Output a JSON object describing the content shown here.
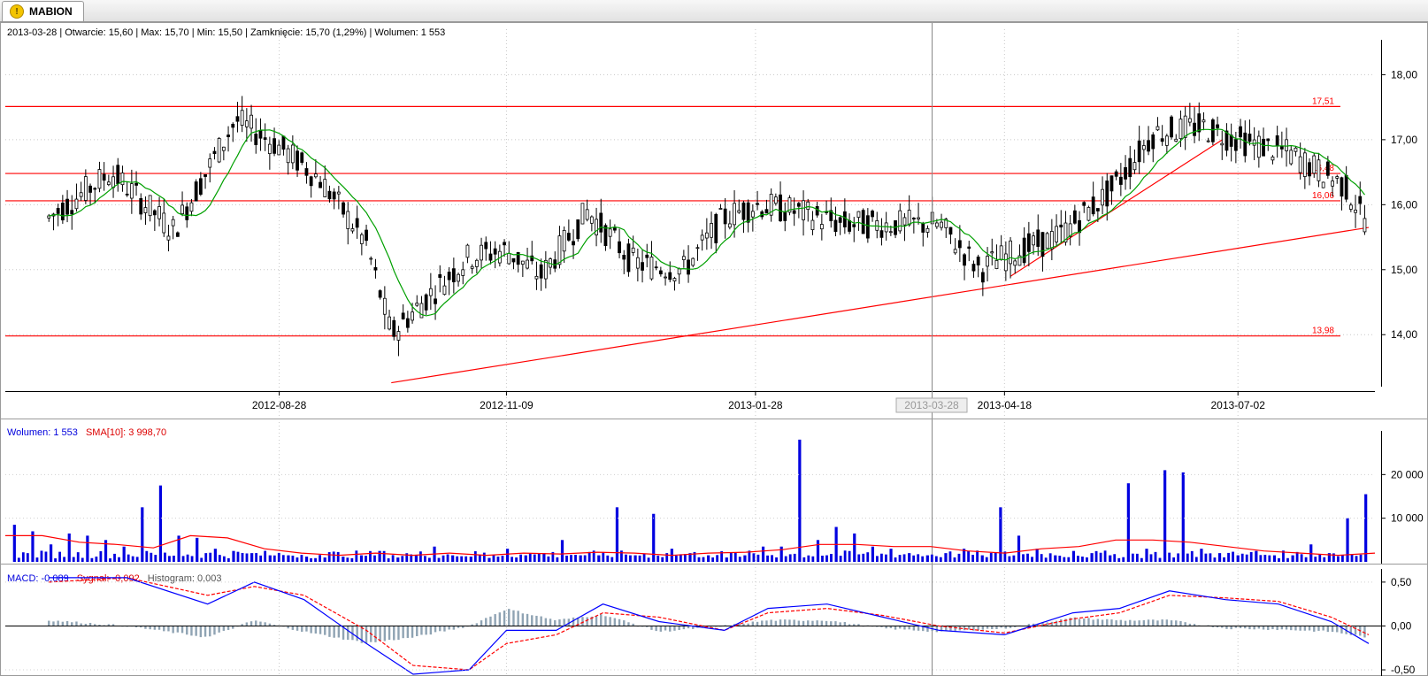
{
  "window": {
    "tab_label": "MABION",
    "tab_icon": "warning-icon"
  },
  "price_panel": {
    "info": "2013-03-28 | Otwarcie: 15,60 | Max: 15,70 | Min: 15,50 | Zamknięcie: 15,70 (1,29%) | Wolumen: 1 553",
    "crosshair_date": "2013-03-28",
    "xlabels": [
      "2012-08-28",
      "2012-11-09",
      "2013-01-28",
      "2013-04-18",
      "2013-07-02"
    ],
    "ylabels": [
      "18,00",
      "17,00",
      "16,00",
      "15,00",
      "14,00"
    ],
    "levels": [
      "17,51",
      "16,48",
      "16,06",
      "13,98"
    ]
  },
  "volume_panel": {
    "legend_volume": "Wolumen: 1 553",
    "legend_sma": "SMA[10]: 3 998,70",
    "ylabels": [
      "20 000",
      "10 000"
    ]
  },
  "macd_panel": {
    "legend_macd": "MACD: -0,089",
    "legend_signal": "Sygnał: -0,092",
    "legend_hist": "Histogram: 0,003",
    "ylabels": [
      "0,50",
      "0,00",
      "-0,50"
    ]
  },
  "colors": {
    "up_line": "#000000",
    "level_line": "#ff0000",
    "sma_price": "#00a000",
    "volume_bar": "#0000e0",
    "volume_sma": "#ff0000",
    "macd": "#0000ff",
    "signal": "#ff0000",
    "histogram": "#8fa3b3"
  },
  "chart_data": [
    {
      "type": "candlestick",
      "title": "MABION",
      "x_range": [
        "2012-06",
        "2013-08"
      ],
      "ylim": [
        13.2,
        18.7
      ],
      "horizontal_levels": [
        17.51,
        16.48,
        16.06,
        13.98
      ],
      "trendlines": [
        {
          "from": {
            "x": "2012-10-03",
            "y": 13.26
          },
          "to": {
            "x": "2013-08-13",
            "y": 15.65
          }
        },
        {
          "from": {
            "x": "2013-04-20",
            "y": 14.9
          },
          "to": {
            "x": "2013-06-27",
            "y": 17.0
          }
        }
      ],
      "close_path": {
        "x": [
          "2012-06-15",
          "2012-07-05",
          "2012-07-25",
          "2012-08-14",
          "2012-08-28",
          "2012-09-10",
          "2012-09-25",
          "2012-10-03",
          "2012-10-15",
          "2012-10-28",
          "2012-11-09",
          "2012-11-20",
          "2012-12-05",
          "2012-12-20",
          "2013-01-05",
          "2013-01-18",
          "2013-01-28",
          "2013-02-10",
          "2013-02-25",
          "2013-03-10",
          "2013-03-28",
          "2013-04-10",
          "2013-04-18",
          "2013-05-05",
          "2013-05-22",
          "2013-06-05",
          "2013-06-20",
          "2013-07-02",
          "2013-07-18",
          "2013-08-05",
          "2013-08-13"
        ],
        "y": [
          15.8,
          16.5,
          15.6,
          17.3,
          16.9,
          16.4,
          15.4,
          14.0,
          14.6,
          15.2,
          15.3,
          14.9,
          15.9,
          15.1,
          15.0,
          15.8,
          16.0,
          15.9,
          15.7,
          15.7,
          15.7,
          15.0,
          15.2,
          15.5,
          16.2,
          17.1,
          17.2,
          17.0,
          16.8,
          16.3,
          15.7
        ]
      }
    },
    {
      "type": "bar",
      "series": [
        {
          "name": "Wolumen",
          "values": [
            8500,
            7000,
            4000,
            6500,
            6000,
            5000,
            3500,
            12500,
            17500,
            6000,
            5500,
            3000,
            2500,
            2000,
            1500,
            1500,
            1200,
            1000,
            1200,
            1500,
            2500,
            1000,
            1500,
            3500,
            1500,
            1200,
            900,
            3000,
            1500,
            2000,
            5000,
            1500,
            1500,
            12500,
            1500,
            11000,
            3000,
            2000,
            1500,
            1000,
            1500,
            3500,
            3500,
            28000,
            5000,
            8000,
            6500,
            3500,
            3000,
            2000,
            1500,
            2000,
            3000,
            1500,
            12500,
            6000,
            3000,
            1500,
            2500,
            2000,
            1500,
            18000,
            3000,
            21000,
            20500,
            3000,
            2000,
            1500,
            2500,
            1500,
            1500,
            4000,
            2000,
            10000,
            15500
          ]
        }
      ],
      "overlay": {
        "name": "SMA[10]",
        "values": [
          6000,
          6000,
          4500,
          4000,
          3200,
          6000,
          5500,
          3000,
          2000,
          1500,
          2000,
          1500,
          2000,
          1500,
          2000,
          1800,
          2200,
          2000,
          1500,
          2000,
          2200,
          2800,
          4000,
          4000,
          3500,
          3500,
          2500,
          2000,
          3000,
          3500,
          5000,
          5000,
          4500,
          3500,
          2500,
          2000,
          1500,
          2000
        ]
      },
      "ylim": [
        0,
        30000
      ]
    },
    {
      "type": "line",
      "series": [
        {
          "name": "MACD",
          "x": [
            "2012-06-15",
            "2012-07-10",
            "2012-08-05",
            "2012-08-20",
            "2012-09-05",
            "2012-09-25",
            "2012-10-10",
            "2012-10-28",
            "2012-11-09",
            "2012-11-25",
            "2012-12-10",
            "2012-12-28",
            "2013-01-18",
            "2013-02-01",
            "2013-02-20",
            "2013-03-10",
            "2013-03-28",
            "2013-04-18",
            "2013-05-10",
            "2013-05-25",
            "2013-06-10",
            "2013-06-28",
            "2013-07-15",
            "2013-08-01",
            "2013-08-13"
          ],
          "y": [
            0.55,
            0.55,
            0.25,
            0.5,
            0.3,
            -0.2,
            -0.55,
            -0.5,
            -0.05,
            -0.05,
            0.25,
            0.05,
            -0.05,
            0.2,
            0.25,
            0.1,
            -0.05,
            -0.1,
            0.15,
            0.2,
            0.4,
            0.3,
            0.25,
            0.05,
            -0.2
          ]
        },
        {
          "name": "Sygnał",
          "x": [
            "2012-06-15",
            "2012-07-10",
            "2012-08-05",
            "2012-08-20",
            "2012-09-05",
            "2012-09-25",
            "2012-10-10",
            "2012-10-28",
            "2012-11-09",
            "2012-11-25",
            "2012-12-10",
            "2012-12-28",
            "2013-01-18",
            "2013-02-01",
            "2013-02-20",
            "2013-03-10",
            "2013-03-28",
            "2013-04-18",
            "2013-05-10",
            "2013-05-25",
            "2013-06-10",
            "2013-06-28",
            "2013-07-15",
            "2013-08-01",
            "2013-08-13"
          ],
          "y": [
            0.5,
            0.55,
            0.35,
            0.45,
            0.35,
            -0.05,
            -0.45,
            -0.5,
            -0.2,
            -0.1,
            0.15,
            0.1,
            -0.05,
            0.15,
            0.2,
            0.12,
            0.0,
            -0.08,
            0.08,
            0.15,
            0.35,
            0.32,
            0.28,
            0.1,
            -0.1
          ]
        }
      ],
      "ylim": [
        -0.55,
        0.65
      ]
    }
  ]
}
